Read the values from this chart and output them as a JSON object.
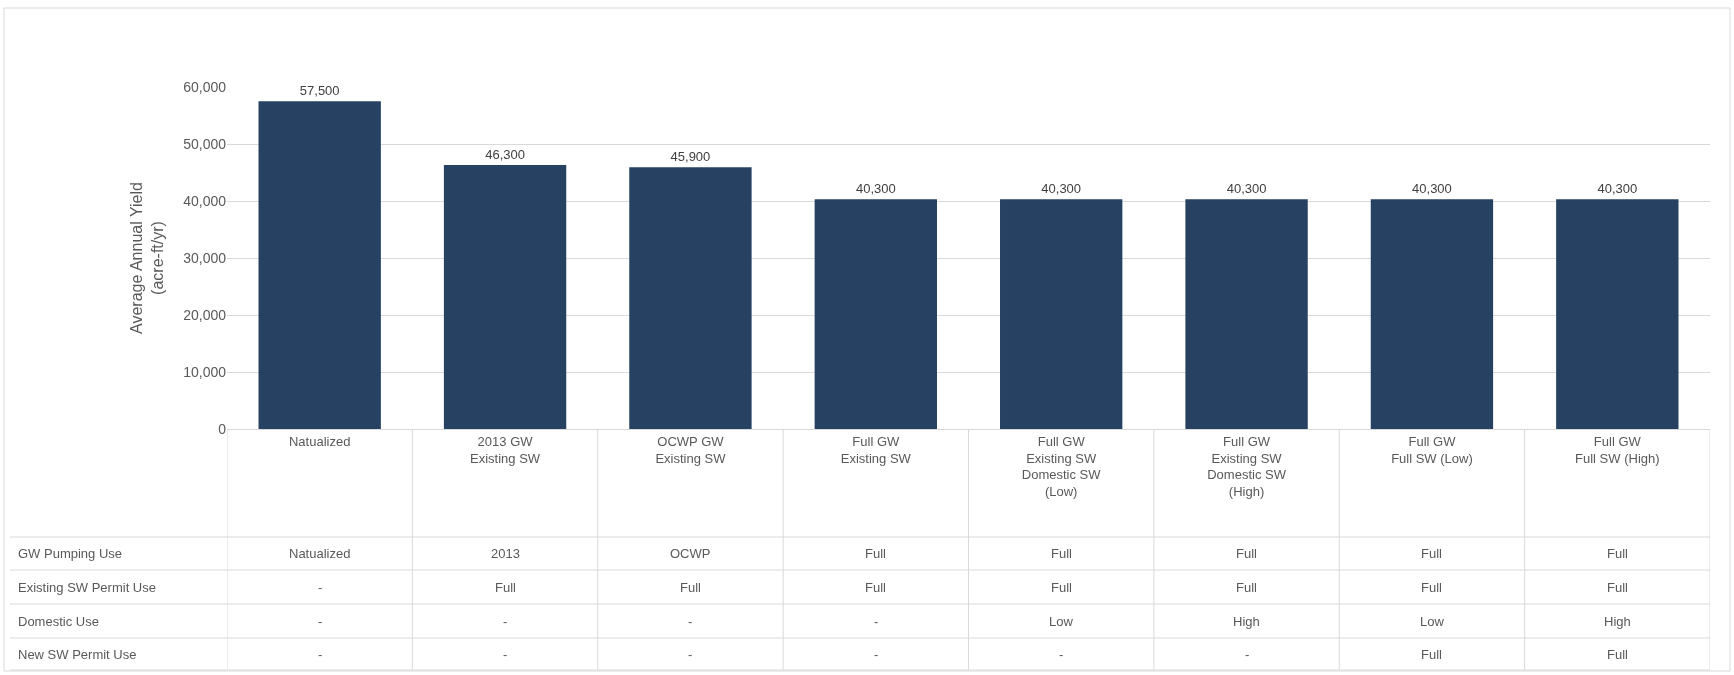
{
  "chart_data": {
    "type": "bar",
    "ylabel": "Average Annual Yield\n(acre-ft/yr)",
    "categories": [
      "Natualized",
      "2013 GW\nExisting SW",
      "OCWP GW\nExisting SW",
      "Full GW\nExisting SW",
      "Full GW\nExisting SW\nDomestic SW\n(Low)",
      "Full GW\nExisting SW\nDomestic SW\n(High)",
      "Full GW\nFull SW (Low)",
      "Full GW\nFull SW (High)"
    ],
    "values": [
      57500,
      46300,
      45900,
      40300,
      40300,
      40300,
      40300,
      40300
    ],
    "color": "#264161",
    "value_labels": [
      "57,500",
      "46,300",
      "45,900",
      "40,300",
      "40,300",
      "40,300",
      "40,300",
      "40,300"
    ],
    "ylim": [
      0,
      60000
    ],
    "yticks": [
      0,
      {
        "value": 10000,
        "label": "10,000"
      },
      {
        "value": 20000,
        "label": "20,000"
      },
      {
        "value": 30000,
        "label": "30,000"
      },
      {
        "value": 40000,
        "label": "40,000"
      },
      {
        "value": 50000,
        "label": "50,000"
      },
      {
        "value": 60000,
        "label": "60,000"
      }
    ],
    "grid": "y",
    "annotations": [
      "GW Pumping Use",
      "Natualized",
      "2013",
      "OCWP",
      "Full",
      "Full",
      "Full",
      "Full",
      "Full",
      "Existing SW Permit Use",
      "-",
      "Full",
      "Full",
      "Full",
      "Full",
      "Full",
      "Full",
      "Full",
      "Domestic Use",
      "-",
      "-",
      "-",
      "-",
      "Low",
      "High",
      "Low",
      "High",
      "New SW Permit Use",
      "-",
      "-",
      "-",
      "-",
      "-",
      "-",
      "Full",
      "Full"
    ]
  }
}
